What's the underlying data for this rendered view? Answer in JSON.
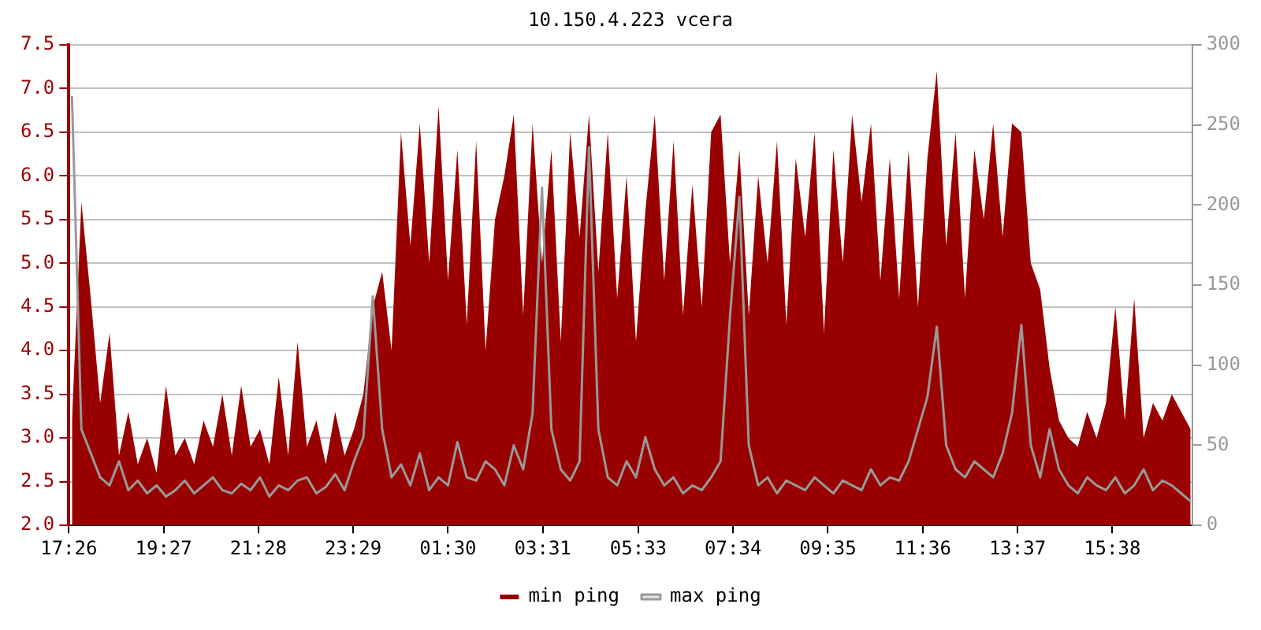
{
  "chart_data": {
    "type": "area",
    "title": "10.150.4.223 vcera",
    "x": [
      "--01-01T17:30",
      "--01-01T17:42",
      "--01-01T17:54",
      "--01-01T18:06",
      "--01-01T18:18",
      "--01-01T18:30",
      "--01-01T18:42",
      "--01-01T18:54",
      "--01-01T19:06",
      "--01-01T19:18",
      "--01-01T19:30",
      "--01-01T19:42",
      "--01-01T19:54",
      "--01-01T20:06",
      "--01-01T20:18",
      "--01-01T20:30",
      "--01-01T20:42",
      "--01-01T20:54",
      "--01-01T21:06",
      "--01-01T21:18",
      "--01-01T21:30",
      "--01-01T21:42",
      "--01-01T21:54",
      "--01-01T22:06",
      "--01-01T22:18",
      "--01-01T22:30",
      "--01-01T22:42",
      "--01-01T22:54",
      "--01-01T23:06",
      "--01-01T23:18",
      "--01-01T23:30",
      "--01-01T23:42",
      "--01-01T23:54",
      "--01-02T00:06",
      "--01-02T00:18",
      "--01-02T00:30",
      "--01-02T00:42",
      "--01-02T00:54",
      "--01-02T01:06",
      "--01-02T01:18",
      "--01-02T01:30",
      "--01-02T01:42",
      "--01-02T01:54",
      "--01-02T02:06",
      "--01-02T02:18",
      "--01-02T02:30",
      "--01-02T02:42",
      "--01-02T02:54",
      "--01-02T03:06",
      "--01-02T03:18",
      "--01-02T03:30",
      "--01-02T03:42",
      "--01-02T03:54",
      "--01-02T04:06",
      "--01-02T04:18",
      "--01-02T04:30",
      "--01-02T04:42",
      "--01-02T04:54",
      "--01-02T05:06",
      "--01-02T05:18",
      "--01-02T05:30",
      "--01-02T05:42",
      "--01-02T05:54",
      "--01-02T06:06",
      "--01-02T06:18",
      "--01-02T06:30",
      "--01-02T06:42",
      "--01-02T06:54",
      "--01-02T07:06",
      "--01-02T07:18",
      "--01-02T07:30",
      "--01-02T07:42",
      "--01-02T07:54",
      "--01-02T08:06",
      "--01-02T08:18",
      "--01-02T08:30",
      "--01-02T08:42",
      "--01-02T08:54",
      "--01-02T09:06",
      "--01-02T09:18",
      "--01-02T09:30",
      "--01-02T09:42",
      "--01-02T09:54",
      "--01-02T10:06",
      "--01-02T10:18",
      "--01-02T10:30",
      "--01-02T10:42",
      "--01-02T10:54",
      "--01-02T11:06",
      "--01-02T11:18",
      "--01-02T11:30",
      "--01-02T11:42",
      "--01-02T11:54",
      "--01-02T12:06",
      "--01-02T12:18",
      "--01-02T12:30",
      "--01-02T12:42",
      "--01-02T12:54",
      "--01-02T13:06",
      "--01-02T13:18",
      "--01-02T13:30",
      "--01-02T13:42",
      "--01-02T13:54",
      "--01-02T14:06",
      "--01-02T14:18",
      "--01-02T14:30",
      "--01-02T14:42",
      "--01-02T14:54",
      "--01-02T15:06",
      "--01-02T15:18",
      "--01-02T15:30",
      "--01-02T15:42",
      "--01-02T15:54",
      "--01-02T16:06",
      "--01-02T16:18",
      "--01-02T16:30",
      "--01-02T16:42",
      "--01-02T16:54",
      "--01-02T17:06",
      "--01-02T17:18"
    ],
    "series": [
      {
        "name": "min ping",
        "type": "area",
        "color": "#990000",
        "values": [
          3.2,
          5.7,
          4.6,
          3.4,
          4.2,
          2.8,
          3.3,
          2.7,
          3.0,
          2.6,
          3.6,
          2.8,
          3.0,
          2.7,
          3.2,
          2.9,
          3.5,
          2.8,
          3.6,
          2.9,
          3.1,
          2.7,
          3.7,
          2.8,
          4.1,
          2.9,
          3.2,
          2.7,
          3.3,
          2.8,
          3.1,
          3.5,
          4.5,
          4.9,
          4.0,
          6.5,
          5.2,
          6.6,
          5.0,
          6.8,
          4.8,
          6.3,
          4.3,
          6.4,
          4.0,
          5.5,
          6.0,
          6.7,
          4.4,
          6.6,
          5.0,
          6.3,
          4.1,
          6.5,
          5.3,
          6.7,
          4.9,
          6.5,
          4.6,
          6.0,
          4.1,
          5.6,
          6.7,
          4.8,
          6.4,
          4.4,
          5.9,
          4.5,
          6.5,
          6.7,
          5.0,
          6.3,
          4.4,
          6.0,
          5.0,
          6.4,
          4.3,
          6.2,
          5.3,
          6.5,
          4.2,
          6.3,
          5.0,
          6.7,
          5.7,
          6.6,
          4.8,
          6.2,
          4.6,
          6.3,
          4.5,
          6.2,
          7.2,
          5.2,
          6.5,
          4.6,
          6.3,
          5.5,
          6.6,
          5.3,
          6.6,
          6.5,
          5.0,
          4.7,
          3.8,
          3.2,
          3.0,
          2.9,
          3.3,
          3.0,
          3.4,
          4.5,
          3.2,
          4.6,
          3.0,
          3.4,
          3.2,
          3.5,
          3.3,
          3.1
        ]
      },
      {
        "name": "max ping",
        "type": "line",
        "axis": "y2",
        "color": "#999999",
        "values": [
          268,
          60,
          45,
          30,
          25,
          40,
          22,
          28,
          20,
          25,
          18,
          22,
          28,
          20,
          25,
          30,
          22,
          20,
          26,
          22,
          30,
          18,
          25,
          22,
          28,
          30,
          20,
          24,
          32,
          22,
          40,
          55,
          143,
          60,
          30,
          38,
          25,
          45,
          22,
          30,
          25,
          52,
          30,
          28,
          40,
          35,
          25,
          50,
          35,
          70,
          211,
          60,
          35,
          28,
          40,
          236,
          60,
          30,
          25,
          40,
          30,
          55,
          35,
          25,
          30,
          20,
          25,
          22,
          30,
          40,
          130,
          205,
          50,
          25,
          30,
          20,
          28,
          25,
          22,
          30,
          25,
          20,
          28,
          25,
          22,
          35,
          25,
          30,
          28,
          40,
          60,
          80,
          124,
          50,
          35,
          30,
          40,
          35,
          30,
          45,
          70,
          125,
          50,
          30,
          60,
          35,
          25,
          20,
          30,
          25,
          22,
          30,
          20,
          25,
          35,
          22,
          28,
          25,
          20,
          15
        ]
      }
    ],
    "xlim": [
      "--01-01T17:26",
      "--01-02T17:20"
    ],
    "xticks": [
      {
        "value": "--01-01T17:26",
        "label": "17:26"
      },
      {
        "value": "--01-01T19:27",
        "label": "19:27"
      },
      {
        "value": "--01-01T21:28",
        "label": "21:28"
      },
      {
        "value": "--01-01T23:29",
        "label": "23:29"
      },
      {
        "value": "--01-02T01:30",
        "label": "01:30"
      },
      {
        "value": "--01-02T03:31",
        "label": "03:31"
      },
      {
        "value": "--01-02T05:33",
        "label": "05:33"
      },
      {
        "value": "--01-02T07:34",
        "label": "07:34"
      },
      {
        "value": "--01-02T09:35",
        "label": "09:35"
      },
      {
        "value": "--01-02T11:36",
        "label": "11:36"
      },
      {
        "value": "--01-02T13:37",
        "label": "13:37"
      },
      {
        "value": "--01-02T15:38",
        "label": "15:38"
      }
    ],
    "ylim": [
      2,
      7.5
    ],
    "yticks": [
      {
        "value": 2,
        "label": "2.0"
      },
      {
        "value": 2.5,
        "label": "2.5"
      },
      {
        "value": 3,
        "label": "3.0"
      },
      {
        "value": 3.5,
        "label": "3.5"
      },
      {
        "value": 4,
        "label": "4.0"
      },
      {
        "value": 4.5,
        "label": "4.5"
      },
      {
        "value": 5,
        "label": "5.0"
      },
      {
        "value": 5.5,
        "label": "5.5"
      },
      {
        "value": 6,
        "label": "6.0"
      },
      {
        "value": 6.5,
        "label": "6.5"
      },
      {
        "value": 7,
        "label": "7.0"
      },
      {
        "value": 7.5,
        "label": "7.5"
      }
    ],
    "y2lim": [
      0,
      300
    ],
    "y2ticks": [
      0,
      50,
      100,
      150,
      200,
      250,
      300
    ],
    "grid": "y",
    "legend": "bottom",
    "marker": "none"
  }
}
